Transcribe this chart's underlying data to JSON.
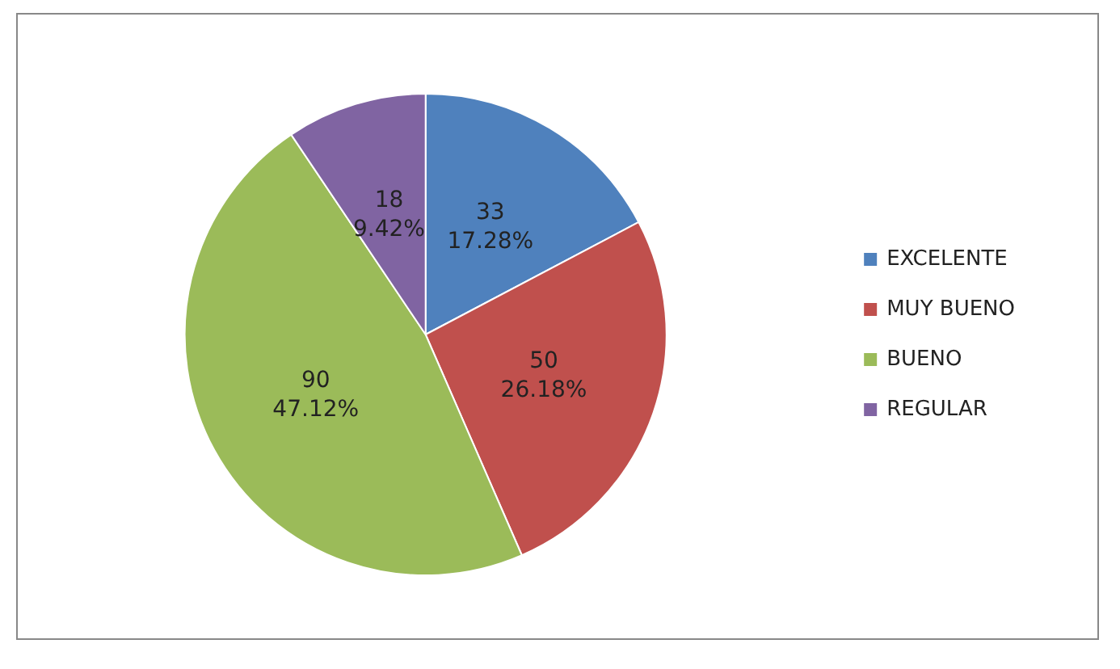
{
  "chart_data": {
    "type": "pie",
    "categories": [
      "EXCELENTE",
      "MUY BUENO",
      "BUENO",
      "REGULAR"
    ],
    "values": [
      33,
      50,
      90,
      18
    ],
    "colors": [
      "#4f81bd",
      "#c0504d",
      "#9bbb59",
      "#8064a2"
    ],
    "value_labels": [
      "33\n17.28%",
      "50\n26.18%",
      "90\n47.12%",
      "18\n9.42%"
    ],
    "legend": "right"
  }
}
